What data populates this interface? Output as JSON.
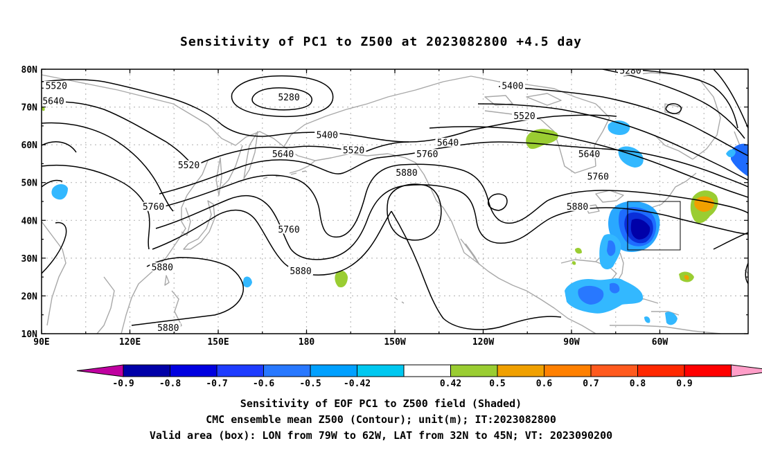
{
  "title": "Sensitivity of PC1 to Z500 at 2023082800 +4.5 day",
  "lat_labels": [
    "80N",
    "70N",
    "60N",
    "50N",
    "40N",
    "30N",
    "20N",
    "10N"
  ],
  "lon_labels": [
    "90E",
    "120E",
    "150E",
    "180",
    "150W",
    "120W",
    "90W",
    "60W"
  ],
  "contour_labels": [
    {
      "text": "5520",
      "lon": 95,
      "lat": 75.5
    },
    {
      "text": "5640",
      "lon": 94,
      "lat": 71.5
    },
    {
      "text": "5280",
      "lon": 174,
      "lat": 72.5
    },
    {
      "text": "5400",
      "lon": 187,
      "lat": 62.5
    },
    {
      "text": "5520",
      "lon": 140,
      "lat": 54.5
    },
    {
      "text": "5640",
      "lon": 172,
      "lat": 57.5
    },
    {
      "text": "5520",
      "lon": 196,
      "lat": 58.5
    },
    {
      "text": "5640",
      "lon": 228,
      "lat": 60.5
    },
    {
      "text": "5760",
      "lon": 221,
      "lat": 57.5
    },
    {
      "text": "5880",
      "lon": 214,
      "lat": 52.5
    },
    {
      "text": "5760",
      "lon": 128,
      "lat": 43.5
    },
    {
      "text": "5760",
      "lon": 174,
      "lat": 37.5
    },
    {
      "text": "5880",
      "lon": 178,
      "lat": 26.5
    },
    {
      "text": "5880",
      "lon": 131,
      "lat": 27.5
    },
    {
      "text": "5880",
      "lon": 133,
      "lat": 11.5
    },
    {
      "text": "5280",
      "lon": 290,
      "lat": 79.5
    },
    {
      "text": "5400",
      "lon": 250,
      "lat": 75.5
    },
    {
      "text": "5520",
      "lon": 254,
      "lat": 67.5
    },
    {
      "text": "5640",
      "lon": 276,
      "lat": 57.5
    },
    {
      "text": "5760",
      "lon": 279,
      "lat": 51.5
    },
    {
      "text": "5880",
      "lon": 272,
      "lat": 43.5
    }
  ],
  "valid_box": {
    "lon_min": 281,
    "lon_max": 298,
    "lat_min": 32,
    "lat_max": 45
  },
  "colorbar": {
    "colors": [
      "#c000a0",
      "#0000a8",
      "#0000e0",
      "#1e3cff",
      "#2878ff",
      "#00a0ff",
      "#00c8f0",
      "#ffffff",
      "#9acd32",
      "#f0a000",
      "#ff8000",
      "#ff5a1e",
      "#ff2800",
      "#ff0000",
      "#ff9ec8"
    ],
    "labels": [
      "-0.9",
      "-0.8",
      "-0.7",
      "-0.6",
      "-0.5",
      "-0.42",
      "0.42",
      "0.5",
      "0.6",
      "0.7",
      "0.8",
      "0.9"
    ]
  },
  "footer": {
    "line1": "Sensitivity of EOF PC1 to Z500 field (Shaded)",
    "line2": "CMC ensemble mean Z500 (Contour); unit(m); IT:2023082800",
    "line3": "Valid area (box): LON from 79W to 62W, LAT from 32N to 45N; VT: 2023090200"
  }
}
